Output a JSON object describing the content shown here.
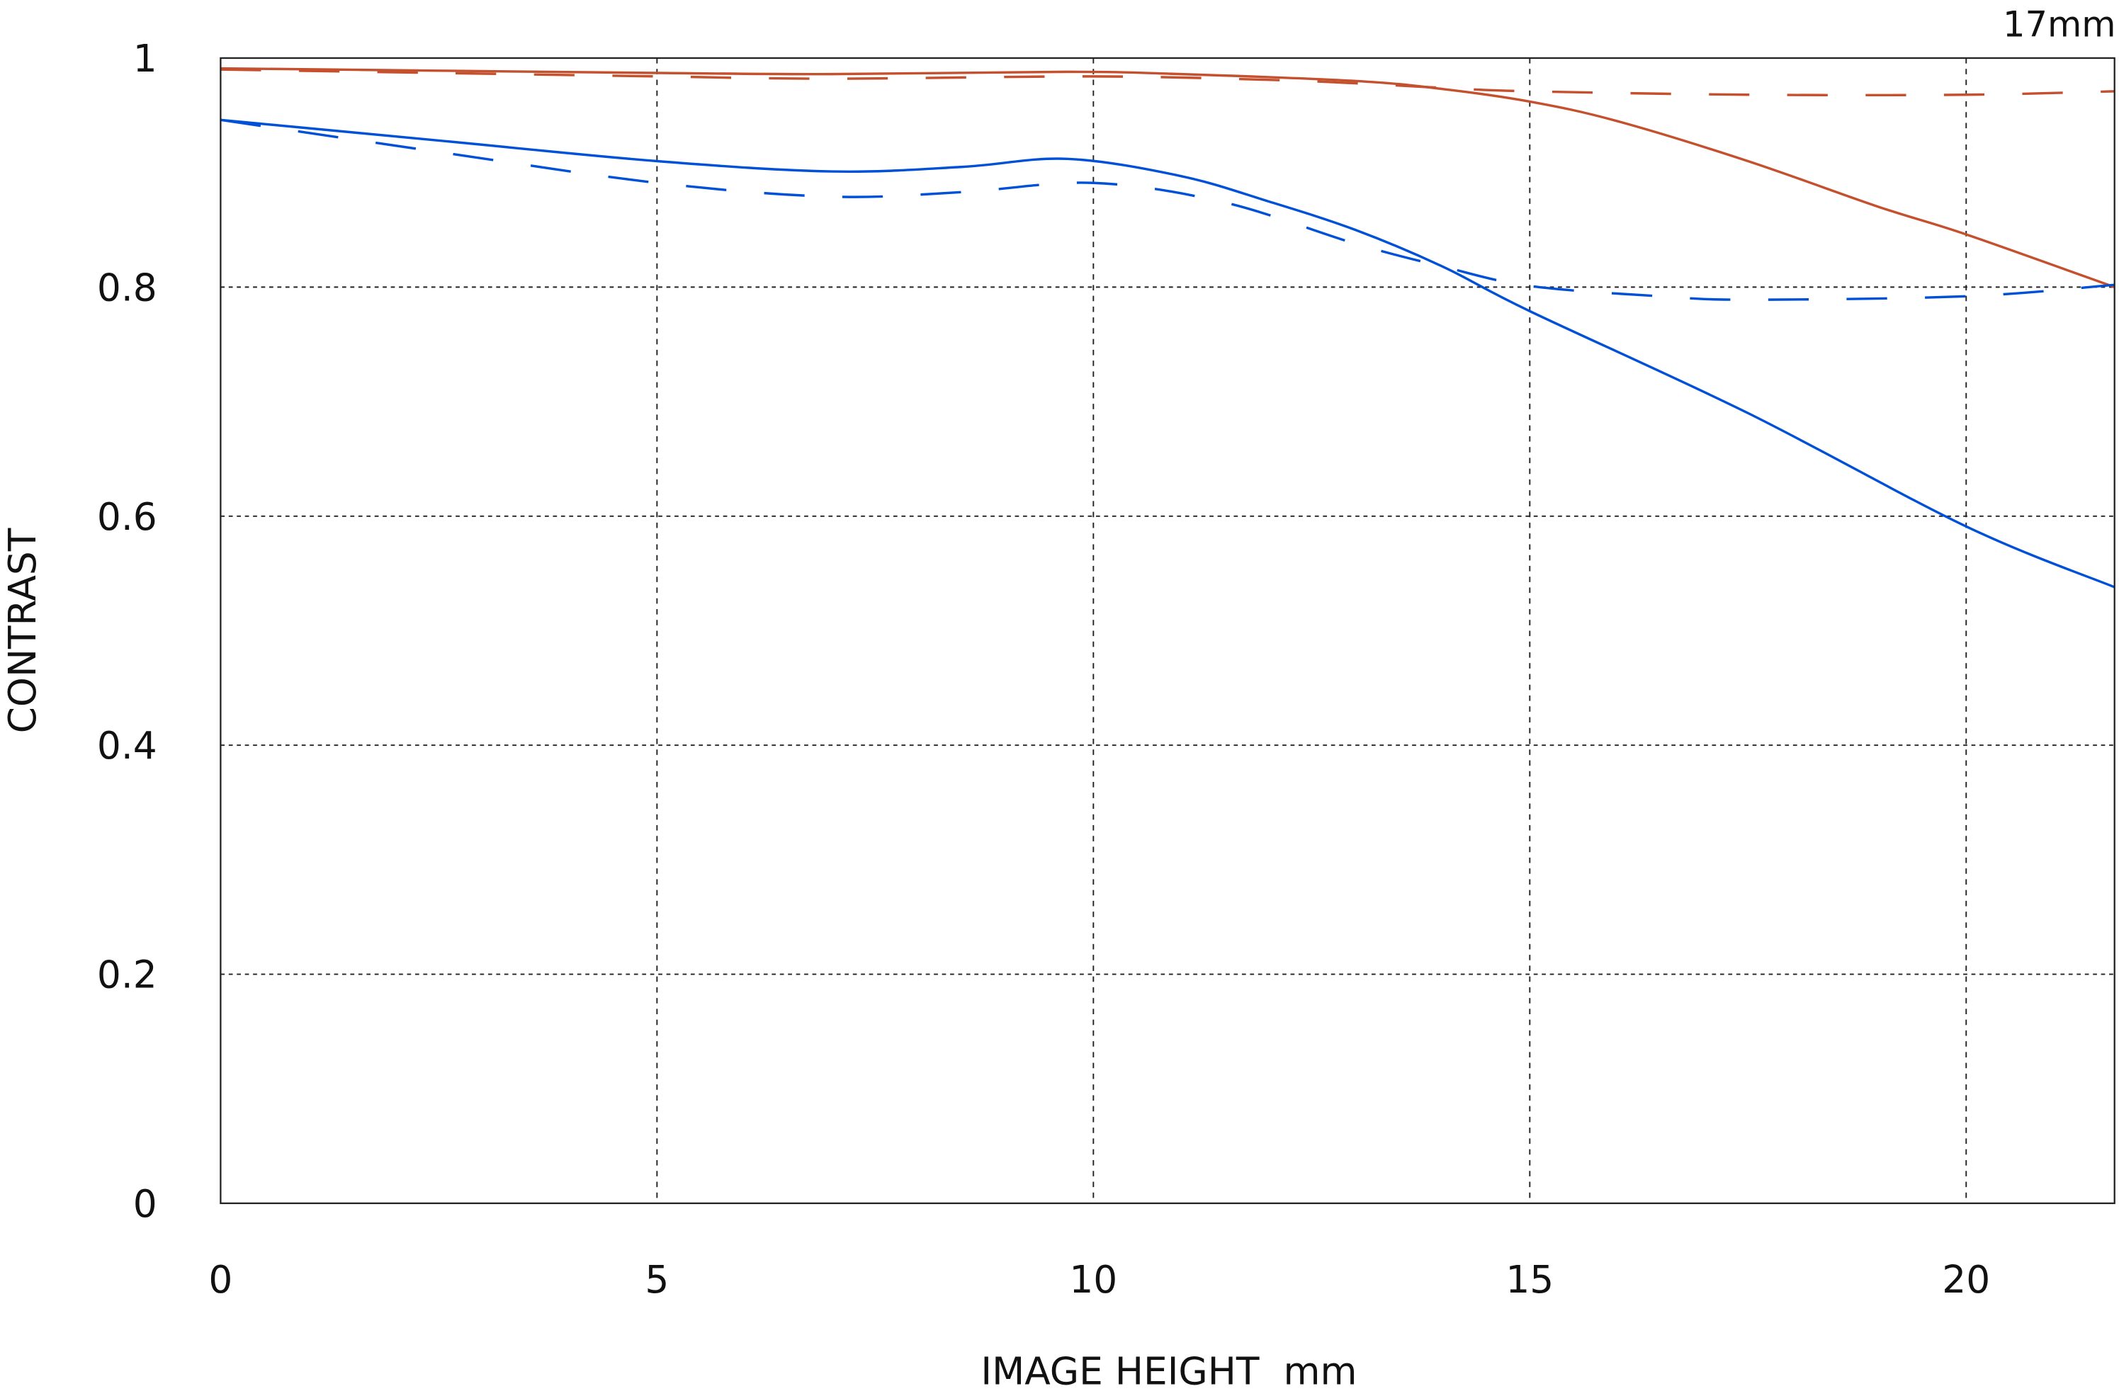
{
  "chart_data": {
    "type": "line",
    "title": "",
    "annotation": "17mm",
    "xlabel": "IMAGE HEIGHT  mm",
    "ylabel": "CONTRAST",
    "xlim": [
      0,
      21.7
    ],
    "ylim": [
      0,
      1
    ],
    "xticks": [
      0,
      5,
      10,
      15,
      20
    ],
    "xtick_labels": [
      "0",
      "5",
      "10",
      "15",
      "20"
    ],
    "yticks": [
      0,
      0.2,
      0.4,
      0.6,
      0.8,
      1
    ],
    "ytick_labels": [
      "0",
      "0.2",
      "0.4",
      "0.6",
      "0.8",
      "1"
    ],
    "grid": true,
    "legend": "none",
    "series": [
      {
        "color": "#c4502e",
        "style": "solid",
        "x": [
          0,
          2.5,
          5,
          7,
          9.7,
          11,
          13,
          14,
          15,
          16,
          17.5,
          19,
          20,
          21.7
        ],
        "y": [
          0.991,
          0.989,
          0.987,
          0.986,
          0.988,
          0.986,
          0.98,
          0.973,
          0.962,
          0.945,
          0.91,
          0.87,
          0.846,
          0.8
        ]
      },
      {
        "color": "#c4502e",
        "style": "dashed",
        "x": [
          0,
          2.5,
          5,
          7,
          10,
          12,
          13,
          14,
          15,
          17.5,
          20,
          21.7
        ],
        "y": [
          0.99,
          0.987,
          0.984,
          0.982,
          0.984,
          0.981,
          0.978,
          0.974,
          0.971,
          0.968,
          0.968,
          0.971
        ]
      },
      {
        "color": "#0050d8",
        "style": "solid",
        "x": [
          0,
          2.5,
          5,
          7,
          8.5,
          9.7,
          11,
          12,
          13,
          14,
          15,
          17.5,
          20,
          21.7
        ],
        "y": [
          0.946,
          0.928,
          0.91,
          0.901,
          0.905,
          0.912,
          0.897,
          0.875,
          0.85,
          0.818,
          0.779,
          0.69,
          0.591,
          0.538
        ]
      },
      {
        "color": "#0050d8",
        "style": "dashed",
        "x": [
          0,
          2.5,
          5,
          7,
          8.5,
          10,
          11.5,
          13,
          14,
          15,
          16.5,
          17.5,
          20,
          21.7
        ],
        "y": [
          0.946,
          0.918,
          0.891,
          0.879,
          0.883,
          0.891,
          0.874,
          0.838,
          0.818,
          0.801,
          0.792,
          0.789,
          0.792,
          0.802
        ]
      }
    ]
  }
}
